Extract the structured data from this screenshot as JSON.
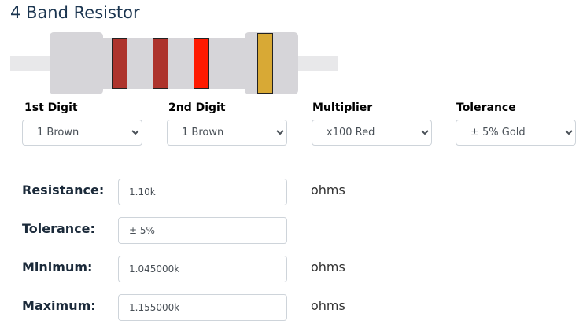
{
  "title": "4 Band Resistor",
  "bands": {
    "colors": [
      "#ad332c",
      "#ad332c",
      "#ff1a00",
      "#d8a935"
    ],
    "body_color": "#d6d5d9",
    "lead_color": "#e8e8ea"
  },
  "selectors": [
    {
      "label": "1st Digit",
      "value": "1 Brown"
    },
    {
      "label": "2nd Digit",
      "value": "1 Brown"
    },
    {
      "label": "Multiplier",
      "value": "x100 Red"
    },
    {
      "label": "Tolerance",
      "value": "± 5% Gold"
    }
  ],
  "results": [
    {
      "label": "Resistance:",
      "value": "1.10k",
      "unit": "ohms"
    },
    {
      "label": "Tolerance:",
      "value": "± 5%",
      "unit": ""
    },
    {
      "label": "Minimum:",
      "value": "1.045000k",
      "unit": "ohms"
    },
    {
      "label": "Maximum:",
      "value": "1.155000k",
      "unit": "ohms"
    }
  ]
}
